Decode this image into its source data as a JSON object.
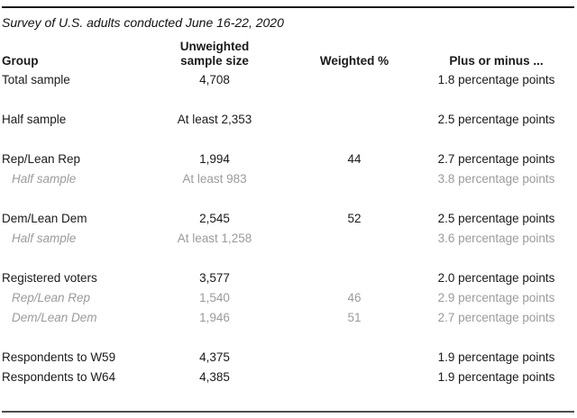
{
  "table": {
    "title": "Survey of U.S. adults conducted June 16-22, 2020",
    "columns": {
      "group": "Group",
      "sample_size_line1": "Unweighted",
      "sample_size_line2": "sample size",
      "weighted": "Weighted %",
      "margin": "Plus or minus ..."
    },
    "rows": [
      {
        "group": "Total sample",
        "sample_size": "4,708",
        "weighted": "",
        "margin": "1.8 percentage points"
      },
      {
        "group": "Half sample",
        "sample_size": "At least 2,353",
        "weighted": "",
        "margin": "2.5 percentage points"
      },
      {
        "group": "Rep/Lean Rep",
        "sample_size": "1,994",
        "weighted": "44",
        "margin": "2.7 percentage points"
      },
      {
        "group": "Half sample",
        "sample_size": "At least 983",
        "weighted": "",
        "margin": "3.8 percentage points"
      },
      {
        "group": "Dem/Lean Dem",
        "sample_size": "2,545",
        "weighted": "52",
        "margin": "2.5 percentage points"
      },
      {
        "group": "Half sample",
        "sample_size": "At least 1,258",
        "weighted": "",
        "margin": "3.6 percentage points"
      },
      {
        "group": "Registered voters",
        "sample_size": "3,577",
        "weighted": "",
        "margin": "2.0 percentage points"
      },
      {
        "group": "Rep/Lean Rep",
        "sample_size": "1,540",
        "weighted": "46",
        "margin": "2.9 percentage points"
      },
      {
        "group": "Dem/Lean Dem",
        "sample_size": "1,946",
        "weighted": "51",
        "margin": "2.7 percentage points"
      },
      {
        "group": "Respondents to W59",
        "sample_size": "4,375",
        "weighted": "",
        "margin": "1.9 percentage points"
      },
      {
        "group": "Respondents to W64",
        "sample_size": "4,385",
        "weighted": "",
        "margin": "1.9 percentage points"
      }
    ],
    "colors": {
      "text": "#1a1a1a",
      "muted_text": "#9b9b9b",
      "rule_top": "#1a1a1a",
      "rule_bottom": "#4f4f4f"
    }
  }
}
